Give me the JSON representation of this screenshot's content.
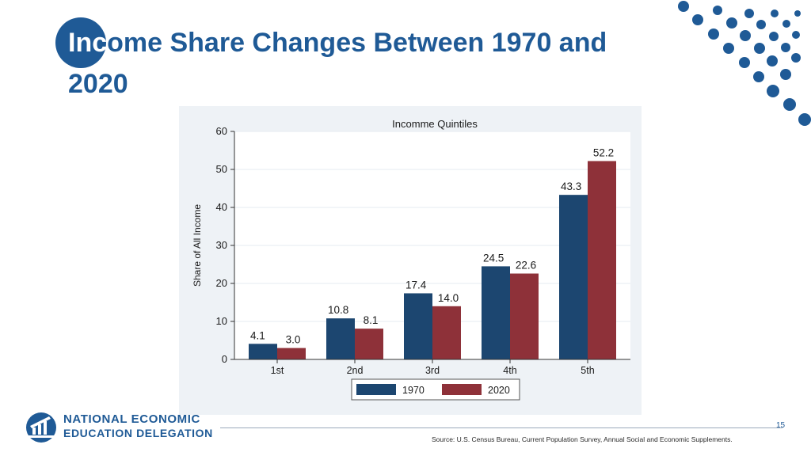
{
  "slide": {
    "title_prefix": "Inc",
    "title_rest": "ome Share Changes Between 1970 and 2020",
    "page_number": "15",
    "source": "Source: U.S. Census Bureau, Current Population Survey, Annual Social and Economic Supplements."
  },
  "logo": {
    "line1": "NATIONAL ECONOMIC",
    "line2": "EDUCATION DELEGATION"
  },
  "colors": {
    "brand": "#1f5a96",
    "series_1970": "#1c4670",
    "series_2020": "#8e3139"
  },
  "chart_data": {
    "type": "bar",
    "title": "Incomme Quintiles",
    "xlabel": "",
    "ylabel": "Share of All Income",
    "ylim": [
      0,
      60
    ],
    "yticks": [
      0,
      10,
      20,
      30,
      40,
      50,
      60
    ],
    "categories": [
      "1st",
      "2nd",
      "3rd",
      "4th",
      "5th"
    ],
    "series": [
      {
        "name": "1970",
        "values": [
          4.1,
          10.8,
          17.4,
          24.5,
          43.3
        ],
        "labels": [
          "4.1",
          "10.8",
          "17.4",
          "24.5",
          "43.3"
        ]
      },
      {
        "name": "2020",
        "values": [
          3.0,
          8.1,
          14.0,
          22.6,
          52.2
        ],
        "labels": [
          "3.0",
          "8.1",
          "14.0",
          "22.6",
          "52.2"
        ]
      }
    ],
    "legend": "bottom",
    "grid": true
  }
}
